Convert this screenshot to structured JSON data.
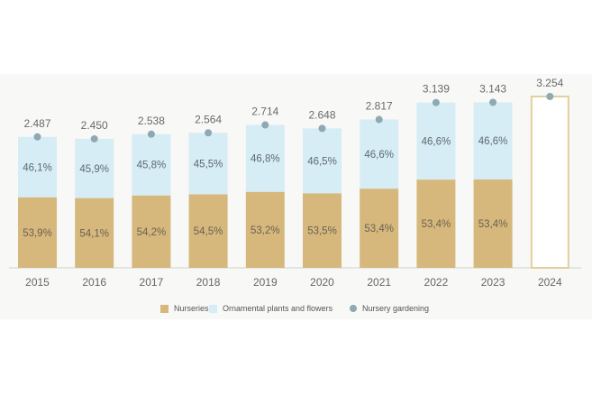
{
  "chart_data": {
    "type": "bar",
    "stacked": true,
    "categories": [
      "2015",
      "2016",
      "2017",
      "2018",
      "2019",
      "2020",
      "2021",
      "2022",
      "2023",
      "2024"
    ],
    "series": [
      {
        "name": "Nurseries",
        "color": "#d6b87c",
        "values": [
          1340.5,
          1325.5,
          1375.6,
          1397.4,
          1443.8,
          1416.7,
          1504.3,
          1676.2,
          1678.4,
          null
        ],
        "labels": [
          "53,9%",
          "54,1%",
          "54,2%",
          "54,5%",
          "53,2%",
          "53,5%",
          "53,4%",
          "53,4%",
          "53,4%",
          ""
        ]
      },
      {
        "name": "Ornamental plants and flowers",
        "color": "#d6edf6",
        "values": [
          1146.5,
          1124.5,
          1162.4,
          1166.6,
          1270.2,
          1231.3,
          1312.7,
          1462.8,
          1464.6,
          null
        ],
        "labels": [
          "46,1%",
          "45,9%",
          "45,8%",
          "45,5%",
          "46,8%",
          "46,5%",
          "46,6%",
          "46,6%",
          "46,6%",
          ""
        ]
      },
      {
        "name": "Nursery gardening",
        "type": "point",
        "color": "#8fa9b2",
        "values": [
          2487,
          2450,
          2538,
          2564,
          2714,
          2648,
          2817,
          3139,
          3143,
          3254
        ],
        "labels": [
          "2.487",
          "2.450",
          "2.538",
          "2.564",
          "2.714",
          "2.648",
          "2.817",
          "3.139",
          "3.143",
          "3.254"
        ]
      }
    ],
    "forecast_bar": {
      "category": "2024",
      "value": 3254,
      "fill": "#ffffff",
      "outline": "#e2cf9f"
    },
    "legend_position": "bottom",
    "grid": false,
    "ylim": [
      0,
      3254
    ]
  },
  "legend": [
    {
      "label": "Nurseries",
      "color": "#d6b87c",
      "marker": "square"
    },
    {
      "label": "Ornamental plants and flowers",
      "color": "#d6edf6",
      "marker": "square"
    },
    {
      "label": "Nursery gardening",
      "color": "#8fa9b2",
      "marker": "circle"
    }
  ]
}
